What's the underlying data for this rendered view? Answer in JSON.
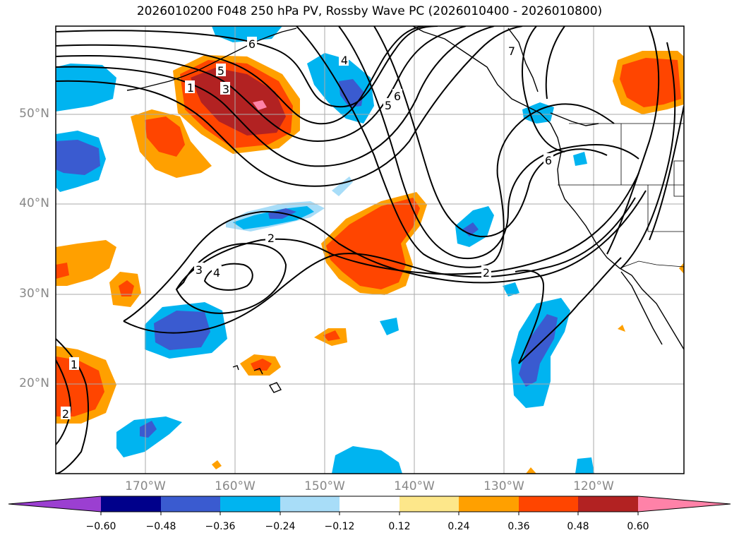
{
  "title": "2026010200 F048 250 hPa PV, Rossby Wave PC (2026010400 - 2026010800)",
  "colors": {
    "land": "#000000",
    "grid": "#aaaaaa",
    "contour": "#000000",
    "neg_060": "#9b3fd1",
    "neg_048": "#00008b",
    "neg_036": "#3a5bd0",
    "neg_024": "#00b4f0",
    "neg_012": "#a8ddf8",
    "zero": "#ffffff",
    "pos_012": "#fde78a",
    "pos_024": "#ffa000",
    "pos_036": "#ff4500",
    "pos_048": "#b22222",
    "pos_060": "#ff82a8"
  },
  "axes": {
    "lat_labels": [
      "50°N",
      "40°N",
      "30°N",
      "20°N"
    ],
    "lat_values": [
      50,
      40,
      30,
      20
    ],
    "lon_labels": [
      "170°W",
      "160°W",
      "150°W",
      "140°W",
      "130°W",
      "120°W"
    ],
    "lon_values": [
      -170,
      -160,
      -150,
      -140,
      -130,
      -120
    ],
    "extent": {
      "lon_min": -180,
      "lon_max": -110,
      "lat_min": 10,
      "lat_max": 60
    }
  },
  "pv_contour_labels": [
    "1",
    "3",
    "4",
    "5",
    "6",
    "7",
    "6",
    "2",
    "3",
    "4",
    "2",
    "1",
    "2",
    "6",
    "5"
  ],
  "colorbar": {
    "tick_labels": [
      "−0.60",
      "−0.48",
      "−0.36",
      "−0.24",
      "−0.12",
      "0.12",
      "0.24",
      "0.36",
      "0.48",
      "0.60"
    ],
    "bounds": [
      -0.6,
      -0.48,
      -0.36,
      -0.24,
      -0.12,
      0.12,
      0.24,
      0.36,
      0.48,
      0.6
    ]
  }
}
